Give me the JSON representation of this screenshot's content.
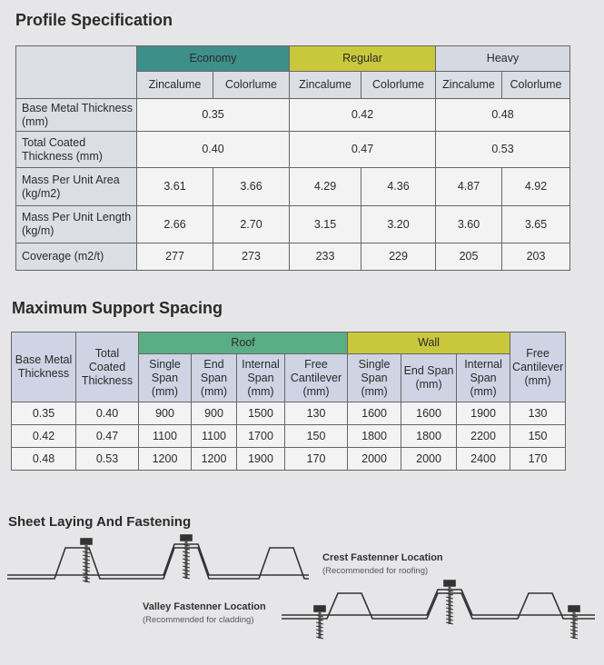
{
  "profile_spec": {
    "title": "Profile Specification",
    "groups": [
      {
        "name": "Economy",
        "color": "#3d8f8a",
        "columns": [
          "Zincalume",
          "Colorlume"
        ]
      },
      {
        "name": "Regular",
        "color": "#c9c83c",
        "columns": [
          "Zincalume",
          "Colorlume"
        ]
      },
      {
        "name": "Heavy",
        "color": "#d6d8e2",
        "columns": [
          "Zincalume",
          "Colorlume"
        ]
      }
    ],
    "rows": [
      {
        "label": "Base Metal Thickness (mm)",
        "values": [
          "0.35",
          "0.42",
          "0.48"
        ]
      },
      {
        "label": "Total Coated Thickness (mm)",
        "values": [
          "0.40",
          "0.47",
          "0.53"
        ]
      },
      {
        "label": "Mass Per Unit Area (kg/m2)",
        "values": [
          "3.61",
          "3.66",
          "4.29",
          "4.36",
          "4.87",
          "4.92"
        ]
      },
      {
        "label": "Mass Per Unit Length (kg/m)",
        "values": [
          "2.66",
          "2.70",
          "3.15",
          "3.20",
          "3.60",
          "3.65"
        ]
      },
      {
        "label": "Coverage (m2/t)",
        "values": [
          "277",
          "273",
          "233",
          "229",
          "205",
          "203"
        ]
      }
    ]
  },
  "support_spacing": {
    "title": "Maximum Support Spacing",
    "base_header": "Base Metal Thickness",
    "total_header": "Total Coated Thickness",
    "groups": [
      {
        "name": "Roof",
        "color": "#5aae86",
        "columns": [
          "Single Span (mm)",
          "End Span (mm)",
          "Internal Span (mm)",
          "Free Cantilever (mm)"
        ]
      },
      {
        "name": "Wall",
        "color": "#c9c83c",
        "columns": [
          "Single Span (mm)",
          "End Span (mm)",
          "Internal Span (mm)"
        ]
      }
    ],
    "last_header": "Free Cantilever (mm)",
    "rows": [
      [
        "0.35",
        "0.40",
        "900",
        "900",
        "1500",
        "130",
        "1600",
        "1600",
        "1900",
        "130"
      ],
      [
        "0.42",
        "0.47",
        "1100",
        "1100",
        "1700",
        "150",
        "1800",
        "1800",
        "2200",
        "150"
      ],
      [
        "0.48",
        "0.53",
        "1200",
        "1200",
        "1900",
        "170",
        "2000",
        "2000",
        "2400",
        "170"
      ]
    ]
  },
  "fastening": {
    "title": "Sheet Laying And Fastening",
    "crest": {
      "label": "Crest Fastenner Location",
      "note": "(Recommended for roofing)"
    },
    "valley": {
      "label": "Valley Fastenner Location",
      "note": "(Recommended for cladding)"
    }
  }
}
